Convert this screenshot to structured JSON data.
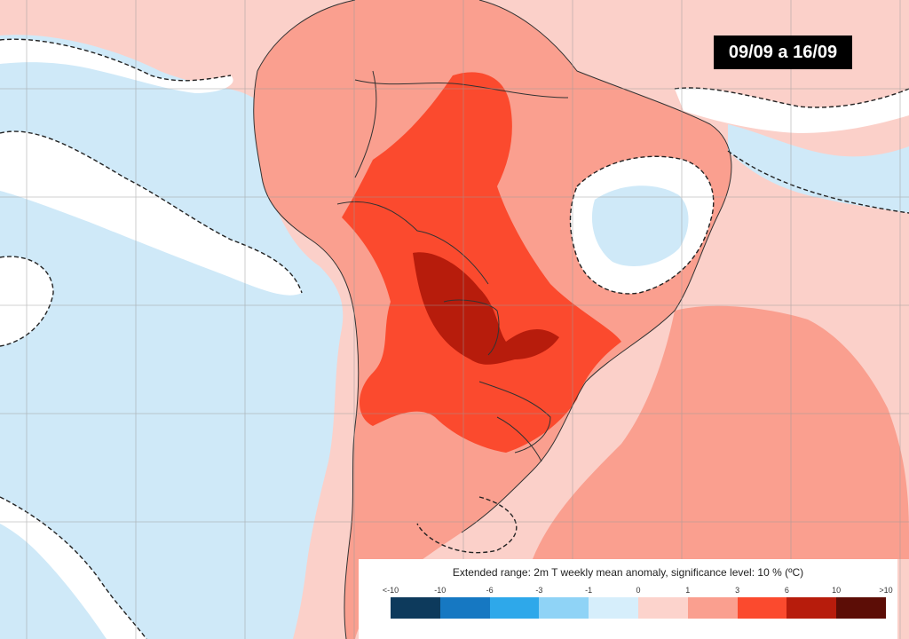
{
  "badge": {
    "date_range": "09/09 a 16/09"
  },
  "legend": {
    "title": "Extended range: 2m T weekly mean anomaly, significance level: 10 % (ºC)",
    "ticks": [
      "<-10",
      "-10",
      "-6",
      "-3",
      "-1",
      "0",
      "1",
      "3",
      "6",
      "10",
      ">10"
    ],
    "colors": [
      "#0d3a5c",
      "#1678c2",
      "#2ea8ea",
      "#8fd3f6",
      "#d6eefb",
      "#fcd3cc",
      "#fa9f8f",
      "#fb4a2e",
      "#b71c0c",
      "#5c0d06"
    ]
  },
  "map": {
    "ocean_cold_color": "#cfe9f8",
    "warm_color": "#fbd0c9",
    "moderate_warm_color": "#fa9f8f",
    "strong_warm_color": "#fb4a2e",
    "very_strong_warm_color": "#b71c0c",
    "neutral_color": "#ffffff"
  }
}
